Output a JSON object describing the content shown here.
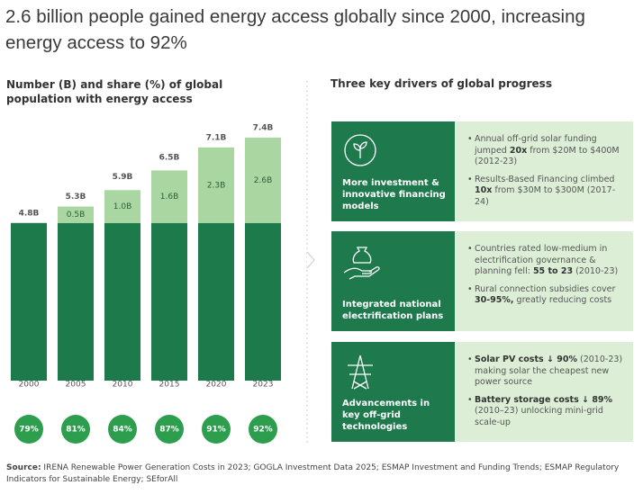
{
  "title": "2.6 billion people gained energy access globally since 2000, increasing energy access to 92%",
  "chart_data": {
    "type": "bar",
    "stacked": true,
    "title": "Number (B) and share (%) of global population with energy access",
    "categories": [
      "2000",
      "2005",
      "2010",
      "2015",
      "2020",
      "2023"
    ],
    "series": [
      {
        "color": "#1c7a4b",
        "values": [
          4.8,
          4.8,
          4.8,
          4.8,
          4.8,
          4.8
        ]
      },
      {
        "color": "#a9d6a1",
        "values": [
          null,
          0.5,
          1.0,
          1.6,
          2.3,
          2.6
        ],
        "value_labels": [
          null,
          "0.5B",
          "1.0B",
          "1.6B",
          "2.3B",
          "2.6B"
        ]
      }
    ],
    "totals": {
      "values": [
        4.8,
        5.3,
        5.9,
        6.5,
        7.1,
        7.4
      ],
      "value_labels": [
        "4.8B",
        "5.3B",
        "5.9B",
        "6.5B",
        "7.1B",
        "7.4B"
      ]
    },
    "shares": {
      "color": "#2d9e4e",
      "values": [
        79,
        81,
        84,
        87,
        91,
        92
      ],
      "value_labels": [
        "79%",
        "81%",
        "84%",
        "87%",
        "91%",
        "92%"
      ]
    },
    "ylim": [
      0,
      8
    ]
  },
  "drivers": {
    "title": "Three key drivers of global progress",
    "items": [
      {
        "label": "More investment & innovative financing models",
        "bullets": [
          [
            {
              "text": "Annual off-grid solar funding jumped "
            },
            {
              "text": "20x",
              "bold": true
            },
            {
              "text": " from $20M to $400M (2012-23)"
            }
          ],
          [
            {
              "text": "Results-Based Financing climbed "
            },
            {
              "text": "10x",
              "bold": true
            },
            {
              "text": " from $30M to $300M (2017-24)"
            }
          ]
        ]
      },
      {
        "label": "Integrated national electrification plans",
        "bullets": [
          [
            {
              "text": "Countries rated low-medium in electrification governance & planning fell: "
            },
            {
              "text": "55 to 23",
              "bold": true
            },
            {
              "text": " (2010-23)"
            }
          ],
          [
            {
              "text": "Rural connection subsidies cover "
            },
            {
              "text": "30-95%,",
              "bold": true
            },
            {
              "text": " greatly reducing costs"
            }
          ]
        ]
      },
      {
        "label": "Advancements in key off-grid technologies",
        "bullets": [
          [
            {
              "text": "Solar PV costs ↓ 90%",
              "bold": true
            },
            {
              "text": " (2010-23) making solar the cheapest new power source"
            }
          ],
          [
            {
              "text": "Battery storage costs ↓ 89%",
              "bold": true
            },
            {
              "text": " (2010–23) unlocking mini-grid scale-up"
            }
          ]
        ]
      }
    ]
  },
  "source": {
    "label": "Source:",
    "text": " IRENA Renewable Power Generation Costs in 2023; GOGLA Investment Data 2025; ESMAP Investment and Funding Trends; ESMAP Regulatory Indicators for Sustainable Energy; SEforAll"
  }
}
